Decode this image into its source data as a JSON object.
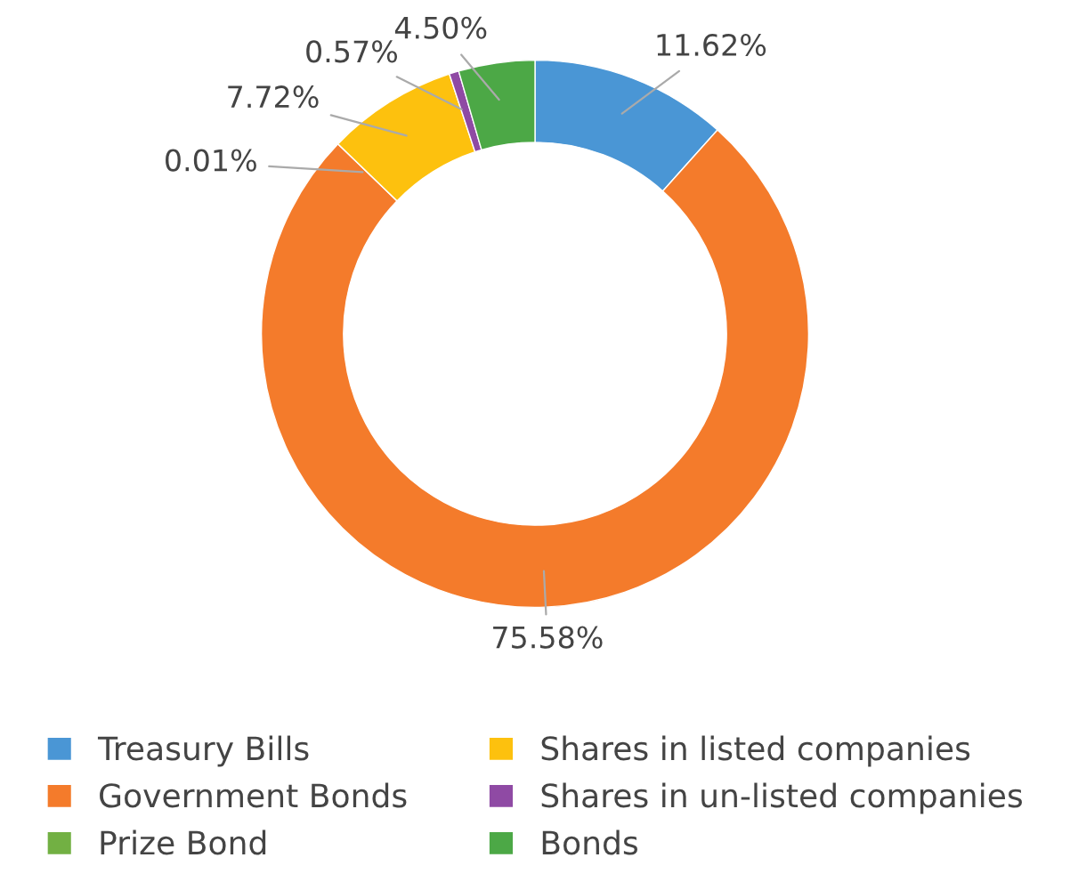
{
  "chart_data": {
    "type": "donut",
    "categories": [
      "Treasury Bills",
      "Government Bonds",
      "Prize Bond",
      "Shares in listed companies",
      "Shares in un-listed companies",
      "Bonds"
    ],
    "values": [
      11.62,
      75.58,
      0.01,
      7.72,
      0.57,
      4.5
    ],
    "colors": [
      "#4a96d5",
      "#f47b2b",
      "#72b043",
      "#fdc10e",
      "#8f4aa4",
      "#4ca846"
    ],
    "value_labels": [
      "11.62%",
      "75.58%",
      "0.01%",
      "7.72%",
      "0.57%",
      "4.50%"
    ],
    "legend": "bottom"
  }
}
